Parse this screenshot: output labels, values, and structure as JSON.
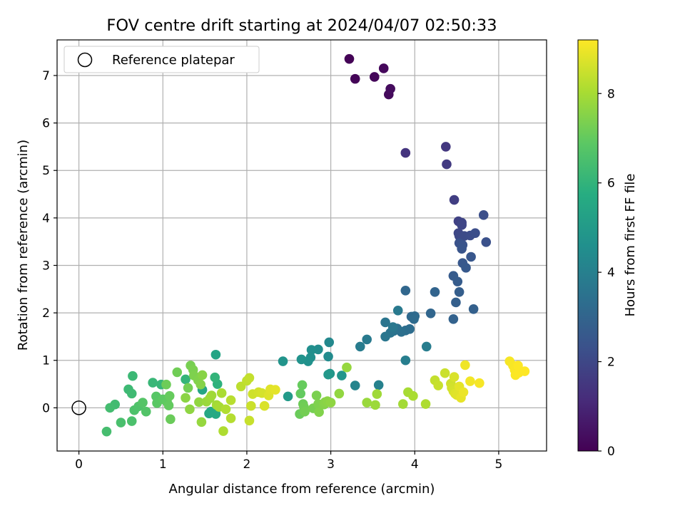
{
  "chart_data": {
    "type": "scatter",
    "title": "FOV centre drift starting at 2024/04/07 02:50:33",
    "xlabel": "Angular distance from reference (arcmin)",
    "ylabel": "Rotation from reference (arcmin)",
    "xlim": [
      -0.26,
      5.57
    ],
    "ylim": [
      -0.91,
      7.75
    ],
    "xticks": [
      0,
      1,
      2,
      3,
      4,
      5
    ],
    "yticks": [
      0,
      1,
      2,
      3,
      4,
      5,
      6,
      7
    ],
    "grid": true,
    "legend": {
      "position": "top-left",
      "entries": [
        "Reference platepar"
      ]
    },
    "reference_point": {
      "x": 0,
      "y": 0,
      "label": "Reference platepar"
    },
    "colorbar": {
      "label": "Hours from first FF file",
      "colormap": "viridis",
      "range": [
        0,
        9.2
      ],
      "ticks": [
        0,
        2,
        4,
        6,
        8
      ]
    },
    "points": [
      [
        3.22,
        7.35,
        0.05
      ],
      [
        3.29,
        6.93,
        0.1
      ],
      [
        3.52,
        6.97,
        0.15
      ],
      [
        3.63,
        7.15,
        0.2
      ],
      [
        3.69,
        6.6,
        0.25
      ],
      [
        3.71,
        6.72,
        0.3
      ],
      [
        3.89,
        5.37,
        1.4
      ],
      [
        4.37,
        5.5,
        1.5
      ],
      [
        4.38,
        5.13,
        1.6
      ],
      [
        4.47,
        4.38,
        1.7
      ],
      [
        4.52,
        3.93,
        1.8
      ],
      [
        4.56,
        3.9,
        1.9
      ],
      [
        4.56,
        3.85,
        1.95
      ],
      [
        4.52,
        3.68,
        2.0
      ],
      [
        4.53,
        3.62,
        2.05
      ],
      [
        4.59,
        3.62,
        2.1
      ],
      [
        4.66,
        3.63,
        2.15
      ],
      [
        4.72,
        3.68,
        2.2
      ],
      [
        4.82,
        4.06,
        2.25
      ],
      [
        4.85,
        3.49,
        2.3
      ],
      [
        4.53,
        3.47,
        2.35
      ],
      [
        4.57,
        3.43,
        2.4
      ],
      [
        4.56,
        3.35,
        2.45
      ],
      [
        4.67,
        3.18,
        2.5
      ],
      [
        4.57,
        3.05,
        2.55
      ],
      [
        4.61,
        2.95,
        2.6
      ],
      [
        4.46,
        2.78,
        2.65
      ],
      [
        4.51,
        2.66,
        2.7
      ],
      [
        4.53,
        2.44,
        2.75
      ],
      [
        4.49,
        2.22,
        2.8
      ],
      [
        4.7,
        2.08,
        2.85
      ],
      [
        4.46,
        1.87,
        2.9
      ],
      [
        4.24,
        2.44,
        3.0
      ],
      [
        4.19,
        1.99,
        3.05
      ],
      [
        3.89,
        2.47,
        3.1
      ],
      [
        3.96,
        1.92,
        3.15
      ],
      [
        4.0,
        1.93,
        3.2
      ],
      [
        3.99,
        1.87,
        3.25
      ],
      [
        3.94,
        1.66,
        3.3
      ],
      [
        3.89,
        1.63,
        3.35
      ],
      [
        3.84,
        1.6,
        3.4
      ],
      [
        3.79,
        1.67,
        3.45
      ],
      [
        3.75,
        1.62,
        3.5
      ],
      [
        3.71,
        1.58,
        3.55
      ],
      [
        3.65,
        1.8,
        3.6
      ],
      [
        3.65,
        1.5,
        3.65
      ],
      [
        3.74,
        1.7,
        3.7
      ],
      [
        3.8,
        2.05,
        3.75
      ],
      [
        3.43,
        1.44,
        3.8
      ],
      [
        3.35,
        1.29,
        3.85
      ],
      [
        4.14,
        1.29,
        3.9
      ],
      [
        3.89,
        1.0,
        3.95
      ],
      [
        3.57,
        0.48,
        4.05
      ],
      [
        3.29,
        0.47,
        4.15
      ],
      [
        2.98,
        1.38,
        4.3
      ],
      [
        2.97,
        1.08,
        4.4
      ],
      [
        2.85,
        1.23,
        4.5
      ],
      [
        2.77,
        1.22,
        4.55
      ],
      [
        2.76,
        1.06,
        4.6
      ],
      [
        2.73,
        0.98,
        4.65
      ],
      [
        2.65,
        1.02,
        4.7
      ],
      [
        2.43,
        0.98,
        4.75
      ],
      [
        3.13,
        0.68,
        4.8
      ],
      [
        2.99,
        0.72,
        4.85
      ],
      [
        2.97,
        0.7,
        4.9
      ],
      [
        2.49,
        0.24,
        5.0
      ],
      [
        1.63,
        1.12,
        5.4
      ],
      [
        1.47,
        0.38,
        5.45
      ],
      [
        1.55,
        -0.12,
        5.5
      ],
      [
        1.57,
        -0.08,
        5.55
      ],
      [
        1.63,
        -0.13,
        5.6
      ],
      [
        1.65,
        0.5,
        5.9
      ],
      [
        1.62,
        0.64,
        6.0
      ],
      [
        1.27,
        0.6,
        6.05
      ],
      [
        0.98,
        0.49,
        6.1
      ],
      [
        0.88,
        0.53,
        6.15
      ],
      [
        0.64,
        0.67,
        6.2
      ],
      [
        0.59,
        0.39,
        6.25
      ],
      [
        0.63,
        0.3,
        6.3
      ],
      [
        0.43,
        0.07,
        6.35
      ],
      [
        0.37,
        0.0,
        6.4
      ],
      [
        0.33,
        -0.5,
        6.45
      ],
      [
        0.5,
        -0.31,
        6.5
      ],
      [
        0.63,
        -0.28,
        6.55
      ],
      [
        0.66,
        -0.05,
        6.6
      ],
      [
        0.71,
        0.03,
        6.65
      ],
      [
        0.8,
        -0.08,
        6.7
      ],
      [
        0.76,
        0.11,
        6.75
      ],
      [
        0.92,
        0.24,
        6.8
      ],
      [
        0.93,
        0.1,
        6.85
      ],
      [
        1.0,
        0.18,
        6.9
      ],
      [
        1.05,
        0.12,
        6.95
      ],
      [
        1.07,
        0.05,
        7.0
      ],
      [
        1.08,
        0.25,
        7.05
      ],
      [
        1.09,
        -0.24,
        7.1
      ],
      [
        1.04,
        0.49,
        7.15
      ],
      [
        1.17,
        0.75,
        7.2
      ],
      [
        1.3,
        0.42,
        7.25
      ],
      [
        1.33,
        0.89,
        7.3
      ],
      [
        1.36,
        0.8,
        7.35
      ],
      [
        1.37,
        0.68,
        7.4
      ],
      [
        1.42,
        0.58,
        7.45
      ],
      [
        1.45,
        0.49,
        7.5
      ],
      [
        1.47,
        0.69,
        7.55
      ],
      [
        1.27,
        0.21,
        7.6
      ],
      [
        1.32,
        -0.03,
        7.65
      ],
      [
        1.43,
        0.12,
        7.7
      ],
      [
        1.46,
        -0.3,
        7.75
      ],
      [
        1.52,
        0.13,
        7.8
      ],
      [
        1.56,
        0.2,
        7.85
      ],
      [
        1.58,
        0.26,
        7.9
      ],
      [
        1.64,
        0.06,
        7.95
      ],
      [
        1.67,
        0.02,
        8.0
      ],
      [
        1.7,
        0.31,
        8.05
      ],
      [
        1.72,
        -0.49,
        8.1
      ],
      [
        1.75,
        -0.03,
        8.15
      ],
      [
        1.81,
        -0.22,
        8.2
      ],
      [
        1.81,
        0.16,
        8.25
      ],
      [
        1.93,
        0.45,
        8.3
      ],
      [
        2.0,
        0.57,
        8.35
      ],
      [
        2.03,
        0.63,
        8.4
      ],
      [
        2.03,
        -0.27,
        8.45
      ],
      [
        2.05,
        0.04,
        8.5
      ],
      [
        2.07,
        0.29,
        8.55
      ],
      [
        2.14,
        0.33,
        8.6
      ],
      [
        2.18,
        0.31,
        8.65
      ],
      [
        2.21,
        0.04,
        8.7
      ],
      [
        2.26,
        0.26,
        8.75
      ],
      [
        2.28,
        0.39,
        8.8
      ],
      [
        2.34,
        0.38,
        8.85
      ],
      [
        2.64,
        0.3,
        7.0
      ],
      [
        2.66,
        0.48,
        7.05
      ],
      [
        2.63,
        -0.13,
        7.1
      ],
      [
        2.67,
        0.08,
        7.15
      ],
      [
        2.68,
        0.02,
        7.2
      ],
      [
        2.69,
        -0.08,
        7.25
      ],
      [
        2.79,
        -0.01,
        7.3
      ],
      [
        2.83,
        0.26,
        7.35
      ],
      [
        2.85,
        0.08,
        7.4
      ],
      [
        2.86,
        -0.09,
        7.45
      ],
      [
        2.92,
        0.07,
        7.5
      ],
      [
        2.93,
        0.12,
        7.55
      ],
      [
        2.96,
        0.14,
        7.6
      ],
      [
        3.0,
        0.11,
        7.65
      ],
      [
        3.1,
        0.3,
        7.7
      ],
      [
        3.19,
        0.85,
        7.75
      ],
      [
        3.43,
        0.11,
        7.8
      ],
      [
        3.53,
        0.06,
        7.85
      ],
      [
        3.55,
        0.29,
        7.9
      ],
      [
        3.86,
        0.08,
        7.95
      ],
      [
        3.92,
        0.33,
        8.0
      ],
      [
        3.98,
        0.25,
        8.05
      ],
      [
        4.13,
        0.08,
        8.1
      ],
      [
        4.24,
        0.58,
        8.4
      ],
      [
        4.28,
        0.47,
        8.45
      ],
      [
        4.36,
        0.73,
        8.5
      ],
      [
        4.43,
        0.51,
        8.55
      ],
      [
        4.44,
        0.42,
        8.6
      ],
      [
        4.46,
        0.35,
        8.65
      ],
      [
        4.47,
        0.65,
        8.7
      ],
      [
        4.48,
        0.3,
        8.75
      ],
      [
        4.5,
        0.27,
        8.8
      ],
      [
        4.53,
        0.45,
        8.85
      ],
      [
        4.55,
        0.21,
        8.9
      ],
      [
        4.58,
        0.33,
        8.95
      ],
      [
        4.6,
        0.9,
        9.0
      ],
      [
        4.66,
        0.56,
        9.05
      ],
      [
        4.77,
        0.52,
        9.1
      ],
      [
        5.13,
        0.98,
        9.1
      ],
      [
        5.17,
        0.89,
        9.12
      ],
      [
        5.19,
        0.8,
        9.14
      ],
      [
        5.2,
        0.69,
        9.16
      ],
      [
        5.23,
        0.89,
        9.18
      ],
      [
        5.24,
        0.74,
        9.19
      ],
      [
        5.31,
        0.77,
        9.2
      ]
    ]
  }
}
